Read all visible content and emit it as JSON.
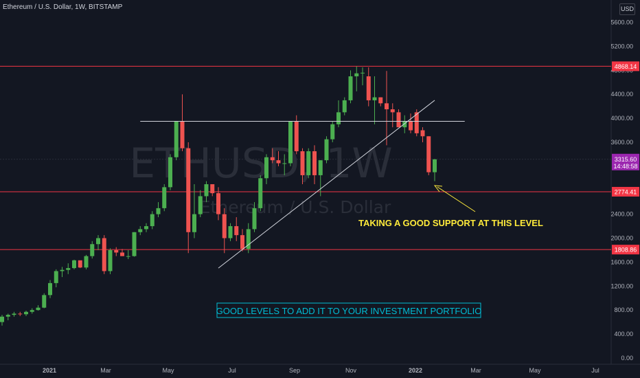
{
  "header": {
    "title": "Ethereum / U.S. Dollar, 1W, BITSTAMP",
    "currency": "USD"
  },
  "watermark": {
    "symbol": "ETHUSD, 1W",
    "name": "Ethereum / U.S. Dollar"
  },
  "annotations": {
    "support_note": "TAKING A GOOD SUPPORT AT THIS LEVEL",
    "portfolio_note": "GOOD LEVELS TO ADD IT TO YOUR INVESTMENT PORTFOLIO"
  },
  "colors": {
    "background": "#131722",
    "up": "#26a69a",
    "up_bright": "#4caf50",
    "down": "#ef5350",
    "level_line": "#f23645",
    "annotation_yellow": "#ffeb3b",
    "annotation_cyan": "#00bcd4",
    "current_price_tag": "#9c27b0"
  },
  "chart_data": {
    "type": "candlestick",
    "title": "Ethereum / U.S. Dollar, 1W, BITSTAMP",
    "y_axis": {
      "ticks": [
        "5600.00",
        "5200.00",
        "4800.00",
        "4400.00",
        "4000.00",
        "3600.00",
        "2400.00",
        "2000.00",
        "1600.00",
        "1200.00",
        "800.00",
        "400.00",
        "0.00"
      ],
      "ylim": [
        -100,
        6000
      ]
    },
    "x_axis": {
      "ticks": [
        "2021",
        "Mar",
        "May",
        "Jul",
        "Sep",
        "Nov",
        "2022",
        "Mar",
        "May",
        "Jul"
      ]
    },
    "grid": false,
    "candles": [
      {
        "o": 600,
        "h": 720,
        "l": 540,
        "c": 690
      },
      {
        "o": 690,
        "h": 740,
        "l": 630,
        "c": 720
      },
      {
        "o": 720,
        "h": 770,
        "l": 690,
        "c": 740
      },
      {
        "o": 740,
        "h": 770,
        "l": 700,
        "c": 730
      },
      {
        "o": 730,
        "h": 790,
        "l": 700,
        "c": 770
      },
      {
        "o": 770,
        "h": 830,
        "l": 740,
        "c": 800
      },
      {
        "o": 800,
        "h": 880,
        "l": 790,
        "c": 840
      },
      {
        "o": 840,
        "h": 1080,
        "l": 830,
        "c": 1050
      },
      {
        "o": 1050,
        "h": 1300,
        "l": 1000,
        "c": 1250
      },
      {
        "o": 1250,
        "h": 1480,
        "l": 1180,
        "c": 1450
      },
      {
        "o": 1450,
        "h": 1520,
        "l": 1350,
        "c": 1470
      },
      {
        "o": 1470,
        "h": 1580,
        "l": 1400,
        "c": 1500
      },
      {
        "o": 1500,
        "h": 1640,
        "l": 1480,
        "c": 1630
      },
      {
        "o": 1630,
        "h": 1600,
        "l": 1500,
        "c": 1510
      },
      {
        "o": 1510,
        "h": 1720,
        "l": 1480,
        "c": 1700
      },
      {
        "o": 1700,
        "h": 1950,
        "l": 1660,
        "c": 1900
      },
      {
        "o": 1900,
        "h": 2050,
        "l": 1800,
        "c": 2000
      },
      {
        "o": 2000,
        "h": 2050,
        "l": 1400,
        "c": 1450
      },
      {
        "o": 1450,
        "h": 1830,
        "l": 1400,
        "c": 1800
      },
      {
        "o": 1800,
        "h": 1850,
        "l": 1700,
        "c": 1760
      },
      {
        "o": 1760,
        "h": 1820,
        "l": 1700,
        "c": 1700
      },
      {
        "o": 1700,
        "h": 1800,
        "l": 1650,
        "c": 1700
      },
      {
        "o": 1700,
        "h": 2100,
        "l": 1690,
        "c": 2100
      },
      {
        "o": 2100,
        "h": 2200,
        "l": 2050,
        "c": 2150
      },
      {
        "o": 2150,
        "h": 2250,
        "l": 2100,
        "c": 2200
      },
      {
        "o": 2200,
        "h": 2450,
        "l": 2150,
        "c": 2400
      },
      {
        "o": 2400,
        "h": 2600,
        "l": 2350,
        "c": 2500
      },
      {
        "o": 2500,
        "h": 2900,
        "l": 2450,
        "c": 2850
      },
      {
        "o": 2850,
        "h": 3400,
        "l": 2800,
        "c": 3350
      },
      {
        "o": 3350,
        "h": 3950,
        "l": 3300,
        "c": 3950
      },
      {
        "o": 3950,
        "h": 4400,
        "l": 3450,
        "c": 3500
      },
      {
        "o": 3500,
        "h": 3600,
        "l": 1750,
        "c": 2100
      },
      {
        "o": 2100,
        "h": 2900,
        "l": 2000,
        "c": 2400
      },
      {
        "o": 2400,
        "h": 2800,
        "l": 2350,
        "c": 2700
      },
      {
        "o": 2700,
        "h": 2950,
        "l": 2600,
        "c": 2900
      },
      {
        "o": 2900,
        "h": 2900,
        "l": 2700,
        "c": 2750
      },
      {
        "o": 2750,
        "h": 2850,
        "l": 2300,
        "c": 2400
      },
      {
        "o": 2400,
        "h": 2500,
        "l": 1750,
        "c": 2000
      },
      {
        "o": 2000,
        "h": 2250,
        "l": 1950,
        "c": 2200
      },
      {
        "o": 2200,
        "h": 2350,
        "l": 1950,
        "c": 2050
      },
      {
        "o": 2050,
        "h": 2150,
        "l": 1780,
        "c": 1820
      },
      {
        "o": 1820,
        "h": 2250,
        "l": 1750,
        "c": 2150
      },
      {
        "o": 2150,
        "h": 2600,
        "l": 2100,
        "c": 2500
      },
      {
        "o": 2500,
        "h": 3050,
        "l": 2450,
        "c": 3000
      },
      {
        "o": 3000,
        "h": 3400,
        "l": 2900,
        "c": 3350
      },
      {
        "o": 3350,
        "h": 3500,
        "l": 3250,
        "c": 3300
      },
      {
        "o": 3300,
        "h": 3450,
        "l": 3200,
        "c": 3250
      },
      {
        "o": 3250,
        "h": 3400,
        "l": 3050,
        "c": 3250
      },
      {
        "o": 3250,
        "h": 3900,
        "l": 3200,
        "c": 3950
      },
      {
        "o": 3950,
        "h": 4050,
        "l": 3400,
        "c": 3450
      },
      {
        "o": 3450,
        "h": 3500,
        "l": 2900,
        "c": 3050
      },
      {
        "o": 3050,
        "h": 3500,
        "l": 3000,
        "c": 3450
      },
      {
        "o": 3450,
        "h": 3550,
        "l": 2900,
        "c": 3050
      },
      {
        "o": 3050,
        "h": 3300,
        "l": 2700,
        "c": 3300
      },
      {
        "o": 3300,
        "h": 3700,
        "l": 3250,
        "c": 3650
      },
      {
        "o": 3650,
        "h": 3950,
        "l": 3600,
        "c": 3900
      },
      {
        "o": 3900,
        "h": 4300,
        "l": 3850,
        "c": 4100
      },
      {
        "o": 4100,
        "h": 4350,
        "l": 4050,
        "c": 4300
      },
      {
        "o": 4300,
        "h": 4800,
        "l": 4250,
        "c": 4700
      },
      {
        "o": 4700,
        "h": 4868,
        "l": 4450,
        "c": 4750
      },
      {
        "o": 4750,
        "h": 4850,
        "l": 4550,
        "c": 4760
      },
      {
        "o": 4700,
        "h": 4850,
        "l": 4200,
        "c": 4300
      },
      {
        "o": 4300,
        "h": 4700,
        "l": 3900,
        "c": 4350
      },
      {
        "o": 4350,
        "h": 4350,
        "l": 4200,
        "c": 4250
      },
      {
        "o": 4250,
        "h": 4790,
        "l": 3550,
        "c": 4150
      },
      {
        "o": 4150,
        "h": 4250,
        "l": 3850,
        "c": 4100
      },
      {
        "o": 4100,
        "h": 4150,
        "l": 3850,
        "c": 3850
      },
      {
        "o": 3850,
        "h": 4050,
        "l": 3750,
        "c": 3950
      },
      {
        "o": 3950,
        "h": 4080,
        "l": 3750,
        "c": 3800
      },
      {
        "o": 4100,
        "h": 4150,
        "l": 3700,
        "c": 3750
      },
      {
        "o": 3800,
        "h": 3850,
        "l": 3600,
        "c": 3700
      },
      {
        "o": 3700,
        "h": 3700,
        "l": 3050,
        "c": 3100
      },
      {
        "o": 3100,
        "h": 3320,
        "l": 2950,
        "c": 3315.6
      }
    ],
    "levels": [
      {
        "label": "4868.14",
        "value": 4868.14
      },
      {
        "label": "2774.41",
        "value": 2774.41
      },
      {
        "label": "1808.86",
        "value": 1808.86
      }
    ],
    "resistance_line": {
      "value": 3950
    },
    "trend_line": {
      "from": {
        "candle": 36,
        "value": 1500
      },
      "to": {
        "candle": 72,
        "value": 4300
      }
    },
    "current_price": {
      "label": "3315.60",
      "countdown": "14:48:58",
      "value": 3315.6
    }
  }
}
